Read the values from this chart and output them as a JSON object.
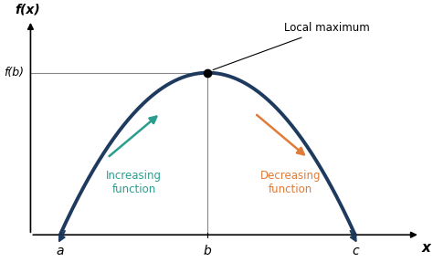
{
  "background_color": "#ffffff",
  "curve_color": "#1e3a5f",
  "curve_linewidth": 2.8,
  "increasing_arrow_color": "#2a9d8f",
  "decreasing_arrow_color": "#e07b39",
  "axis_color": "#888888",
  "dot_color": "black",
  "local_max_label": "Local maximum",
  "increasing_label": "Increasing\nfunction",
  "decreasing_label": "Decreasing\nfunction",
  "xlabel": "x",
  "ylabel": "f(x)",
  "fb_label": "f(b)",
  "a_label": "a",
  "b_label": "b",
  "c_label": "c",
  "x_a": 1.0,
  "x_b": 3.5,
  "x_c": 6.0,
  "xlim": [
    0.3,
    7.2
  ],
  "ylim": [
    -0.5,
    5.5
  ],
  "figsize": [
    4.74,
    2.87
  ],
  "dpi": 100
}
